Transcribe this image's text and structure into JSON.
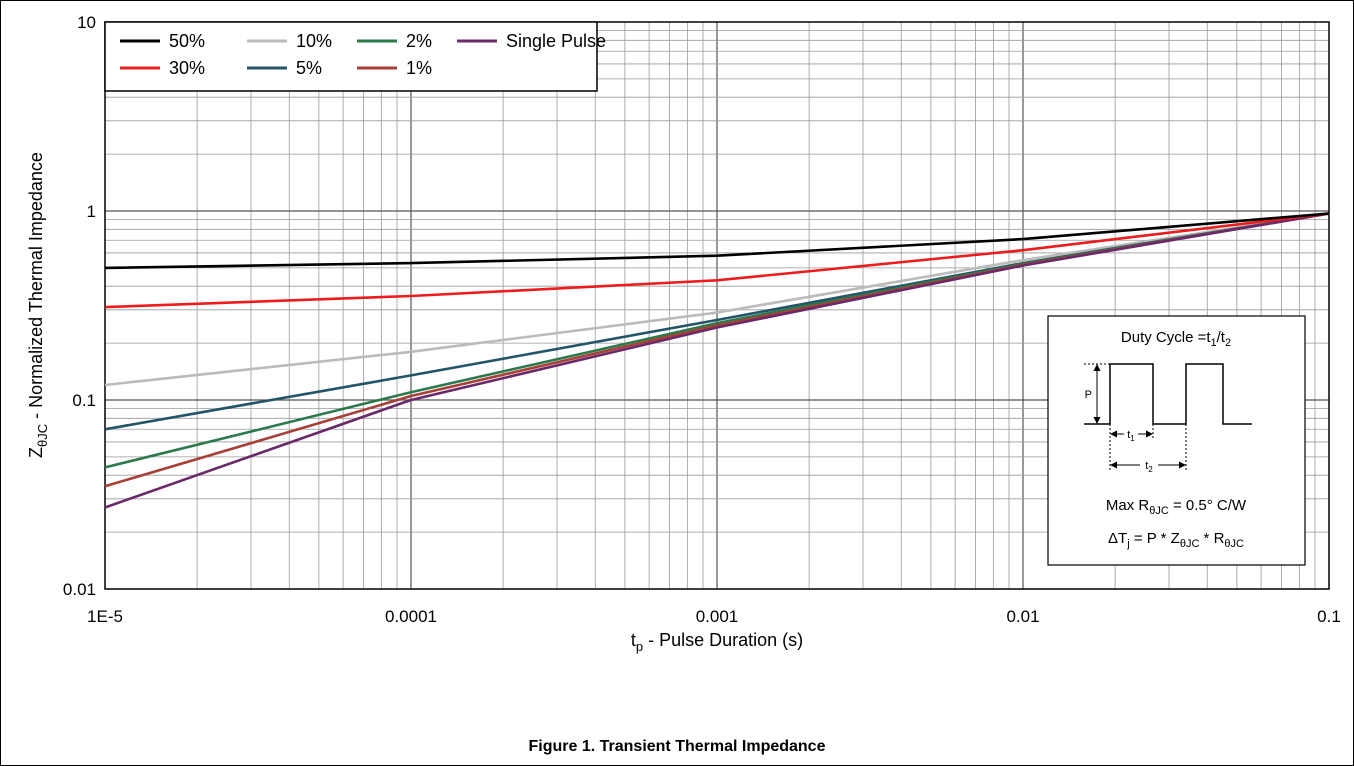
{
  "caption": "Figure 1. Transient Thermal Impedance",
  "chart_data": {
    "type": "line",
    "x_scale": "log",
    "y_scale": "log",
    "xlim": [
      1e-05,
      0.1
    ],
    "ylim": [
      0.01,
      10
    ],
    "grid": true,
    "legend_position": "top-left",
    "x_ticks": [
      "1E-5",
      "0.0001",
      "0.001",
      "0.01",
      "0.1"
    ],
    "y_ticks": [
      "0.01",
      "0.1",
      "1",
      "10"
    ],
    "xlabel": {
      "main": "t",
      "sub": "p",
      "rest": " - Pulse Duration (s)"
    },
    "ylabel": {
      "main": "Z",
      "sub": "θJC",
      "rest": " - Normalized Thermal Impedance"
    },
    "x": [
      1e-05,
      0.0001,
      0.001,
      0.01,
      0.1
    ],
    "series": [
      {
        "name": "50%",
        "color": "#000000",
        "values": [
          0.5,
          0.53,
          0.58,
          0.71,
          0.97
        ]
      },
      {
        "name": "30%",
        "color": "#ee1c1c",
        "values": [
          0.31,
          0.355,
          0.43,
          0.62,
          0.97
        ]
      },
      {
        "name": "10%",
        "color": "#bbbbbb",
        "values": [
          0.12,
          0.18,
          0.29,
          0.55,
          0.97
        ]
      },
      {
        "name": "5%",
        "color": "#245468",
        "values": [
          0.07,
          0.135,
          0.265,
          0.53,
          0.97
        ]
      },
      {
        "name": "2%",
        "color": "#2b7a4b",
        "values": [
          0.044,
          0.11,
          0.255,
          0.525,
          0.97
        ]
      },
      {
        "name": "1%",
        "color": "#a84038",
        "values": [
          0.035,
          0.105,
          0.248,
          0.52,
          0.97
        ]
      },
      {
        "name": "Single Pulse",
        "color": "#6a2a6a",
        "values": [
          0.027,
          0.1,
          0.242,
          0.515,
          0.97
        ]
      }
    ]
  },
  "inset": {
    "title": {
      "main": "Duty Cycle =t",
      "sub1": "1",
      "slash": "/t",
      "sub2": "2"
    },
    "p_label": "P",
    "t1": {
      "main": "t",
      "sub": "1"
    },
    "t2": {
      "main": "t",
      "sub": "2"
    },
    "line1": {
      "pre": "Max R",
      "sub": "θJC",
      "post": " = 0.5° C/W"
    },
    "line2": {
      "pre": "ΔT",
      "sub1": "j",
      "mid1": " = P * Z",
      "sub2": "θJC",
      "mid2": " * R",
      "sub3": "θJC"
    }
  }
}
